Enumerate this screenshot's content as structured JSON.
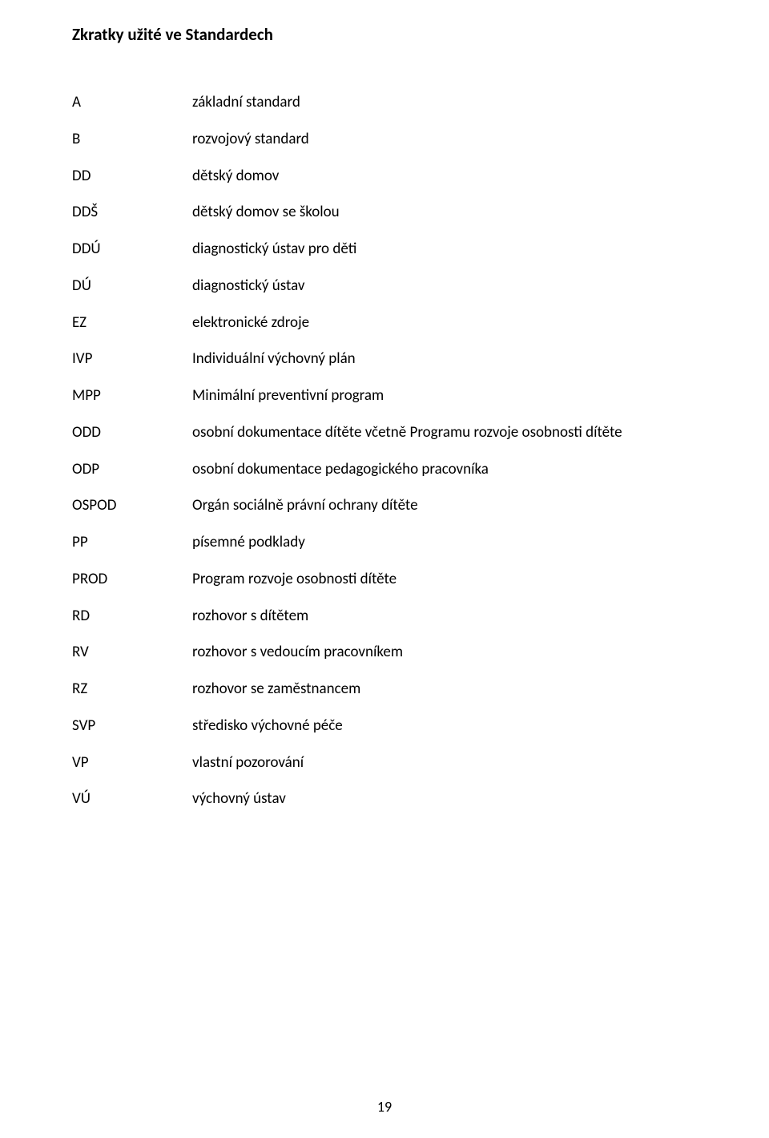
{
  "title": "Zkratky užité ve Standardech",
  "entries": [
    {
      "abbr": "A",
      "def": "základní standard"
    },
    {
      "abbr": "B",
      "def": "rozvojový standard"
    },
    {
      "abbr": "DD",
      "def": "dětský domov"
    },
    {
      "abbr": "DDŠ",
      "def": "dětský domov se školou"
    },
    {
      "abbr": "DDÚ",
      "def": "diagnostický ústav pro děti"
    },
    {
      "abbr": "DÚ",
      "def": "diagnostický ústav"
    },
    {
      "abbr": "EZ",
      "def": "elektronické zdroje"
    },
    {
      "abbr": "IVP",
      "def": "Individuální výchovný plán"
    },
    {
      "abbr": "MPP",
      "def": "Minimální preventivní program"
    },
    {
      "abbr": "ODD",
      "def": "osobní dokumentace dítěte včetně Programu rozvoje osobnosti dítěte"
    },
    {
      "abbr": "ODP",
      "def": "osobní dokumentace pedagogického pracovníka"
    },
    {
      "abbr": "OSPOD",
      "def": "Orgán sociálně právní ochrany dítěte"
    },
    {
      "abbr": "PP",
      "def": "písemné podklady"
    },
    {
      "abbr": "PROD",
      "def": "Program rozvoje osobnosti dítěte"
    },
    {
      "abbr": "RD",
      "def": "rozhovor s dítětem"
    },
    {
      "abbr": "RV",
      "def": "rozhovor s vedoucím pracovníkem"
    },
    {
      "abbr": "RZ",
      "def": "rozhovor se zaměstnancem"
    },
    {
      "abbr": "SVP",
      "def": "středisko výchovné péče"
    },
    {
      "abbr": "VP",
      "def": "vlastní pozorování"
    },
    {
      "abbr": "VÚ",
      "def": "výchovný ústav"
    }
  ],
  "page_number": "19"
}
